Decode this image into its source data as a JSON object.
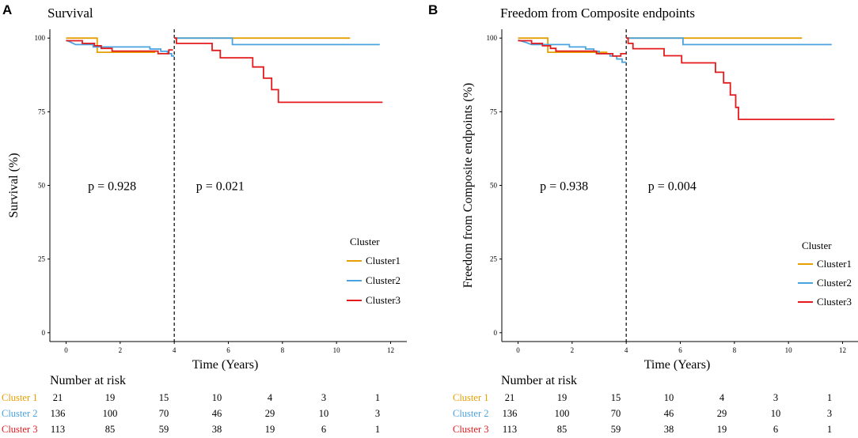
{
  "chart_data": [
    {
      "panel_label": "A",
      "type": "line",
      "subtype": "kaplan-meier-step",
      "title": "Survival",
      "xlabel": "Time (Years)",
      "ylabel": "Survival (%)",
      "xlim": [
        -0.6,
        12.6
      ],
      "ylim": [
        -3,
        103
      ],
      "xticks": [
        "0",
        "2",
        "4",
        "6",
        "8",
        "10",
        "12"
      ],
      "yticks": [
        "0",
        "25",
        "50",
        "75",
        "100"
      ],
      "grid": false,
      "landmark_time": 4,
      "annotations": [
        {
          "text": "p = 0.928",
          "x": 1.7,
          "y": 50
        },
        {
          "text": "p = 0.021",
          "x": 5.7,
          "y": 50
        }
      ],
      "legend": {
        "title": "Cluster",
        "position": "right",
        "entries": [
          "Cluster1",
          "Cluster2",
          "Cluster3"
        ]
      },
      "series": [
        {
          "name": "Cluster1",
          "color": "#E69F00",
          "segments": [
            [
              [
                0,
                100
              ],
              [
                1.15,
                100
              ],
              [
                1.15,
                95.2
              ],
              [
                3.3,
                95.2
              ]
            ],
            [
              [
                4,
                100
              ],
              [
                10.5,
                100
              ]
            ]
          ]
        },
        {
          "name": "Cluster2",
          "color": "#4AA3DF",
          "segments": [
            [
              [
                0,
                99.3
              ],
              [
                0.2,
                98.5
              ],
              [
                0.35,
                97.8
              ],
              [
                1.0,
                97.8
              ],
              [
                1.0,
                97.0
              ],
              [
                3.1,
                97.0
              ],
              [
                3.1,
                96.3
              ],
              [
                3.5,
                96.3
              ],
              [
                3.5,
                95.5
              ],
              [
                3.75,
                95.5
              ],
              [
                3.75,
                94.7
              ],
              [
                3.9,
                94.7
              ],
              [
                3.9,
                93.9
              ],
              [
                4,
                93.9
              ]
            ],
            [
              [
                4,
                100
              ],
              [
                6.15,
                100
              ],
              [
                6.15,
                97.8
              ],
              [
                11.6,
                97.8
              ]
            ]
          ]
        },
        {
          "name": "Cluster3",
          "color": "#E41A1C",
          "segments": [
            [
              [
                0,
                99.1
              ],
              [
                0.6,
                99.1
              ],
              [
                0.6,
                98.2
              ],
              [
                1.05,
                98.2
              ],
              [
                1.05,
                97.4
              ],
              [
                1.3,
                97.4
              ],
              [
                1.3,
                96.5
              ],
              [
                1.7,
                96.5
              ],
              [
                1.7,
                95.6
              ],
              [
                3.4,
                95.6
              ],
              [
                3.4,
                94.7
              ],
              [
                3.8,
                94.7
              ],
              [
                3.8,
                96.0
              ],
              [
                3.95,
                96.0
              ]
            ],
            [
              [
                4,
                100
              ],
              [
                4.08,
                100
              ],
              [
                4.08,
                98.2
              ],
              [
                5.4,
                98.2
              ],
              [
                5.4,
                95.8
              ],
              [
                5.7,
                95.8
              ],
              [
                5.7,
                93.3
              ],
              [
                6.9,
                93.3
              ],
              [
                6.9,
                90.2
              ],
              [
                7.3,
                90.2
              ],
              [
                7.3,
                86.4
              ],
              [
                7.6,
                86.4
              ],
              [
                7.6,
                82.5
              ],
              [
                7.85,
                82.5
              ],
              [
                7.85,
                78.2
              ],
              [
                11.7,
                78.2
              ]
            ]
          ]
        }
      ]
    },
    {
      "panel_label": "B",
      "type": "line",
      "subtype": "kaplan-meier-step",
      "title": "Freedom from Composite endpoints",
      "xlabel": "Time (Years)",
      "ylabel": "Freedom from Composite endpoints (%)",
      "xlim": [
        -0.6,
        12.6
      ],
      "ylim": [
        -3,
        103
      ],
      "xticks": [
        "0",
        "2",
        "4",
        "6",
        "8",
        "10",
        "12"
      ],
      "yticks": [
        "0",
        "25",
        "50",
        "75",
        "100"
      ],
      "grid": false,
      "landmark_time": 4,
      "annotations": [
        {
          "text": "p = 0.938",
          "x": 1.7,
          "y": 50
        },
        {
          "text": "p = 0.004",
          "x": 5.7,
          "y": 50
        }
      ],
      "legend": {
        "title": "Cluster",
        "position": "right",
        "entries": [
          "Cluster1",
          "Cluster2",
          "Cluster3"
        ]
      },
      "series": [
        {
          "name": "Cluster1",
          "color": "#E69F00",
          "segments": [
            [
              [
                0,
                100
              ],
              [
                1.1,
                100
              ],
              [
                1.1,
                95.2
              ],
              [
                3.3,
                95.2
              ]
            ],
            [
              [
                4,
                100
              ],
              [
                10.5,
                100
              ]
            ]
          ]
        },
        {
          "name": "Cluster2",
          "color": "#4AA3DF",
          "segments": [
            [
              [
                0,
                99.3
              ],
              [
                0.3,
                98.5
              ],
              [
                0.5,
                97.8
              ],
              [
                1.9,
                97.8
              ],
              [
                1.9,
                97.0
              ],
              [
                2.5,
                97.0
              ],
              [
                2.5,
                96.3
              ],
              [
                2.8,
                96.3
              ],
              [
                2.8,
                95.5
              ],
              [
                3.0,
                95.5
              ],
              [
                3.0,
                94.7
              ],
              [
                3.4,
                94.7
              ],
              [
                3.4,
                93.9
              ],
              [
                3.65,
                93.9
              ],
              [
                3.65,
                92.9
              ],
              [
                3.85,
                92.9
              ],
              [
                3.85,
                91.8
              ],
              [
                4,
                91.8
              ]
            ],
            [
              [
                4,
                100
              ],
              [
                6.1,
                100
              ],
              [
                6.1,
                97.8
              ],
              [
                11.6,
                97.8
              ]
            ]
          ]
        },
        {
          "name": "Cluster3",
          "color": "#E41A1C",
          "segments": [
            [
              [
                0,
                99.1
              ],
              [
                0.5,
                99.1
              ],
              [
                0.5,
                98.2
              ],
              [
                0.9,
                98.2
              ],
              [
                0.9,
                97.4
              ],
              [
                1.2,
                97.4
              ],
              [
                1.2,
                96.5
              ],
              [
                1.4,
                96.5
              ],
              [
                1.4,
                95.6
              ],
              [
                2.9,
                95.6
              ],
              [
                2.9,
                94.7
              ],
              [
                3.5,
                94.7
              ],
              [
                3.5,
                93.9
              ],
              [
                3.8,
                93.9
              ],
              [
                3.8,
                94.7
              ],
              [
                4,
                94.7
              ]
            ],
            [
              [
                4,
                100
              ],
              [
                4.07,
                100
              ],
              [
                4.07,
                98.2
              ],
              [
                4.25,
                98.2
              ],
              [
                4.25,
                96.4
              ],
              [
                5.4,
                96.4
              ],
              [
                5.4,
                94.0
              ],
              [
                6.05,
                94.0
              ],
              [
                6.05,
                91.6
              ],
              [
                7.3,
                91.6
              ],
              [
                7.3,
                88.4
              ],
              [
                7.6,
                88.4
              ],
              [
                7.6,
                84.8
              ],
              [
                7.85,
                84.8
              ],
              [
                7.85,
                80.7
              ],
              [
                8.05,
                80.7
              ],
              [
                8.05,
                76.5
              ],
              [
                8.15,
                76.5
              ],
              [
                8.15,
                72.4
              ],
              [
                11.7,
                72.4
              ]
            ]
          ]
        }
      ]
    }
  ],
  "risk_tables": [
    {
      "title": "Number at risk",
      "rows": [
        {
          "label": "Cluster  1",
          "color": "#E69F00",
          "values": [
            "21",
            "19",
            "15",
            "10",
            "4",
            "3",
            "1"
          ]
        },
        {
          "label": "Cluster  2",
          "color": "#4AA3DF",
          "values": [
            "136",
            "100",
            "70",
            "46",
            "29",
            "10",
            "3"
          ]
        },
        {
          "label": "Cluster  3",
          "color": "#E41A1C",
          "values": [
            "113",
            "85",
            "59",
            "38",
            "19",
            "6",
            "1"
          ]
        }
      ]
    },
    {
      "title": "Number at risk",
      "rows": [
        {
          "label": "Cluster  1",
          "color": "#E69F00",
          "values": [
            "21",
            "19",
            "15",
            "10",
            "4",
            "3",
            "1"
          ]
        },
        {
          "label": "Cluster  2",
          "color": "#4AA3DF",
          "values": [
            "136",
            "100",
            "70",
            "46",
            "29",
            "10",
            "3"
          ]
        },
        {
          "label": "Cluster  3",
          "color": "#E41A1C",
          "values": [
            "113",
            "85",
            "59",
            "38",
            "19",
            "6",
            "1"
          ]
        }
      ]
    }
  ]
}
